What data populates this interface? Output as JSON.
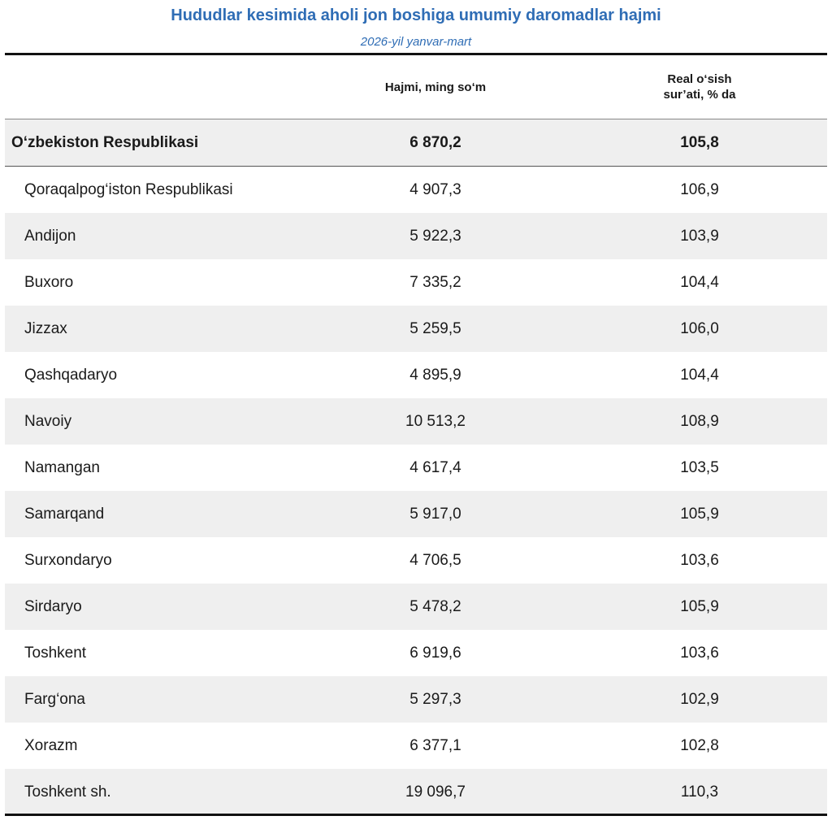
{
  "chart_data": {
    "type": "table",
    "title": "Hududlar kesimida aholi jon boshiga umumiy daromadlar hajmi",
    "subtitle": "2026-yil yanvar-mart",
    "columns": [
      "",
      "Hajmi, ming so‘m",
      "Real o‘sish sur’ati, % da"
    ],
    "column_header_lines": {
      "col2": [
        "Hajmi, ming so‘m"
      ],
      "col3": [
        "Real o‘sish",
        "sur’ati, % da"
      ]
    },
    "total": {
      "name": "O‘zbekiston Respublikasi",
      "volume": "6 870,2",
      "growth": "105,8"
    },
    "rows": [
      {
        "name": "Qoraqalpog‘iston Respublikasi",
        "volume": "4 907,3",
        "growth": "106,9"
      },
      {
        "name": "Andijon",
        "volume": "5 922,3",
        "growth": "103,9"
      },
      {
        "name": "Buxoro",
        "volume": "7 335,2",
        "growth": "104,4"
      },
      {
        "name": "Jizzax",
        "volume": "5 259,5",
        "growth": "106,0"
      },
      {
        "name": "Qashqadaryo",
        "volume": "4 895,9",
        "growth": "104,4"
      },
      {
        "name": "Navoiy",
        "volume": "10 513,2",
        "growth": "108,9"
      },
      {
        "name": "Namangan",
        "volume": "4 617,4",
        "growth": "103,5"
      },
      {
        "name": "Samarqand",
        "volume": "5 917,0",
        "growth": "105,9"
      },
      {
        "name": "Surxondaryo",
        "volume": "4 706,5",
        "growth": "103,6"
      },
      {
        "name": "Sirdaryo",
        "volume": "5 478,2",
        "growth": "105,9"
      },
      {
        "name": "Toshkent",
        "volume": "6 919,6",
        "growth": "103,6"
      },
      {
        "name": "Farg‘ona",
        "volume": "5 297,3",
        "growth": "102,9"
      },
      {
        "name": "Xorazm",
        "volume": "6 377,1",
        "growth": "102,8"
      },
      {
        "name": "Toshkent sh.",
        "volume": "19 096,7",
        "growth": "110,3"
      }
    ]
  },
  "colors": {
    "title": "#2f6db5",
    "row_shade": "#efefef",
    "rule": "#111111"
  }
}
